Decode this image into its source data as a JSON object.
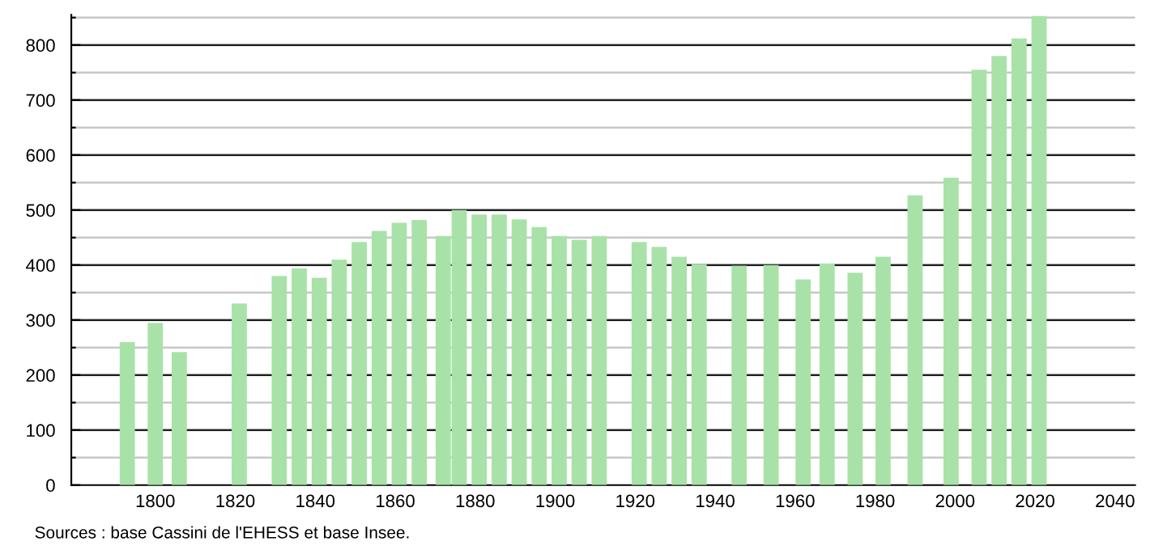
{
  "chart_data": {
    "type": "bar",
    "color": "#a8e2a8",
    "x": [
      1793,
      1800,
      1806,
      1821,
      1831,
      1836,
      1841,
      1846,
      1851,
      1856,
      1861,
      1866,
      1872,
      1876,
      1881,
      1886,
      1891,
      1896,
      1901,
      1906,
      1911,
      1921,
      1926,
      1931,
      1936,
      1946,
      1954,
      1962,
      1968,
      1975,
      1982,
      1990,
      1999,
      2006,
      2011,
      2016,
      2021
    ],
    "values": [
      260,
      295,
      242,
      330,
      380,
      394,
      377,
      410,
      442,
      462,
      477,
      482,
      453,
      500,
      492,
      492,
      483,
      469,
      453,
      446,
      453,
      442,
      433,
      415,
      402,
      399,
      400,
      374,
      403,
      386,
      415,
      527,
      559,
      755,
      780,
      812,
      853
    ],
    "xlim": [
      1779,
      2045
    ],
    "xticks": [
      1800,
      1820,
      1840,
      1860,
      1880,
      1900,
      1920,
      1940,
      1960,
      1980,
      2000,
      2020,
      2040
    ],
    "ylim": [
      0,
      855
    ],
    "yticks": [
      0,
      {
        "value": 50,
        "label": null
      },
      100,
      {
        "value": 150,
        "label": null
      },
      200,
      {
        "value": 250,
        "label": null
      },
      300,
      {
        "value": 350,
        "label": null
      },
      400,
      {
        "value": 450,
        "label": null
      },
      500,
      {
        "value": 550,
        "label": null
      },
      600,
      {
        "value": 650,
        "label": null
      },
      700,
      {
        "value": 750,
        "label": null
      },
      800,
      {
        "value": 850,
        "label": null
      }
    ],
    "grid": "y",
    "annotations": [
      "Sources : base Cassini de l'EHESS et base Insee."
    ]
  }
}
